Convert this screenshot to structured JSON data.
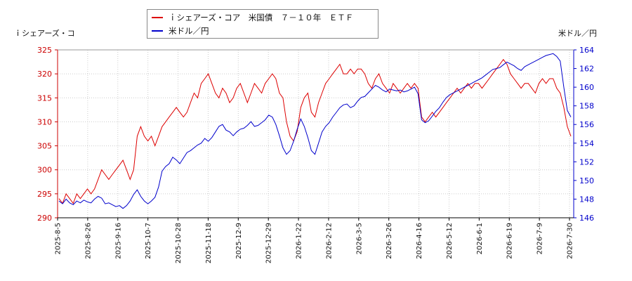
{
  "chart_data": {
    "type": "line",
    "left_axis_title": "ｉシェアーズ・コ",
    "right_axis_title": "米ドル／円",
    "series": [
      {
        "name": "ｉシェアーズ・コア　米国債　７－１０年　ＥＴＦ",
        "color": "#dd0000",
        "axis": "left",
        "values": [
          294,
          293,
          295,
          294,
          293,
          295,
          294,
          295,
          296,
          295,
          296,
          298,
          300,
          299,
          298,
          299,
          300,
          301,
          302,
          300,
          298,
          300,
          307,
          309,
          307,
          306,
          307,
          305,
          307,
          309,
          310,
          311,
          312,
          313,
          312,
          311,
          312,
          314,
          316,
          315,
          318,
          319,
          320,
          318,
          316,
          315,
          317,
          316,
          314,
          315,
          317,
          318,
          316,
          314,
          316,
          318,
          317,
          316,
          318,
          319,
          320,
          319,
          316,
          315,
          310,
          307,
          306,
          308,
          313,
          315,
          316,
          312,
          311,
          314,
          316,
          318,
          319,
          320,
          321,
          322,
          320,
          320,
          321,
          320,
          321,
          321,
          320,
          318,
          317,
          319,
          320,
          318,
          317,
          316,
          318,
          317,
          316,
          317,
          318,
          317,
          318,
          317,
          311,
          310,
          311,
          312,
          311,
          312,
          313,
          314,
          315,
          316,
          317,
          316,
          317,
          318,
          317,
          318,
          318,
          317,
          318,
          319,
          320,
          321,
          322,
          323,
          322,
          320,
          319,
          318,
          317,
          318,
          318,
          317,
          316,
          318,
          319,
          318,
          319,
          319,
          317,
          316,
          313,
          309,
          307
        ]
      },
      {
        "name": "米ドル／円",
        "color": "#0000cc",
        "axis": "right",
        "values": [
          147.8,
          147.5,
          148.0,
          147.6,
          147.4,
          147.8,
          147.6,
          147.9,
          147.7,
          147.6,
          148.0,
          148.3,
          148.1,
          147.5,
          147.6,
          147.4,
          147.2,
          147.3,
          147.0,
          147.3,
          147.8,
          148.5,
          149.0,
          148.3,
          147.8,
          147.5,
          147.8,
          148.2,
          149.3,
          151.0,
          151.5,
          151.8,
          152.5,
          152.2,
          151.8,
          152.4,
          153.0,
          153.2,
          153.5,
          153.8,
          154.0,
          154.5,
          154.2,
          154.6,
          155.2,
          155.8,
          156.0,
          155.4,
          155.2,
          154.8,
          155.2,
          155.5,
          155.6,
          155.9,
          156.3,
          155.8,
          155.9,
          156.2,
          156.5,
          157.0,
          156.8,
          156.0,
          154.8,
          153.5,
          152.8,
          153.2,
          154.2,
          155.5,
          156.6,
          155.8,
          154.6,
          153.2,
          152.8,
          154.0,
          155.2,
          155.8,
          156.2,
          156.8,
          157.3,
          157.8,
          158.1,
          158.2,
          157.8,
          158.0,
          158.5,
          158.9,
          159.0,
          159.4,
          159.8,
          160.2,
          160.0,
          159.7,
          159.5,
          159.8,
          159.7,
          159.6,
          159.7,
          159.5,
          159.6,
          159.8,
          160.0,
          159.3,
          156.5,
          156.2,
          156.4,
          156.9,
          157.4,
          157.8,
          158.4,
          158.9,
          159.2,
          159.4,
          159.6,
          159.8,
          160.0,
          160.2,
          160.4,
          160.6,
          160.8,
          161.0,
          161.3,
          161.6,
          161.9,
          162.0,
          162.1,
          162.4,
          162.7,
          162.5,
          162.3,
          162.0,
          161.8,
          162.2,
          162.4,
          162.6,
          162.8,
          163.0,
          163.2,
          163.4,
          163.5,
          163.6,
          163.3,
          162.8,
          160.0,
          157.5,
          156.8
        ]
      }
    ],
    "x_ticks": [
      "2025-8-5",
      "2025-8-26",
      "2025-9-16",
      "2025-10-7",
      "2025-10-28",
      "2025-11-18",
      "2025-12-9",
      "2025-12-29",
      "2026-1-22",
      "2026-2-12",
      "2026-3-5",
      "2026-3-26",
      "2026-4-16",
      "2026-5-12",
      "2026-6-1",
      "2026-6-19",
      "2026-7-9",
      "2026-7-30"
    ],
    "y_left": {
      "min": 290,
      "max": 325,
      "ticks": [
        290,
        295,
        300,
        305,
        310,
        315,
        320,
        325
      ],
      "color": "#cc0000"
    },
    "y_right": {
      "min": 146,
      "max": 164,
      "ticks": [
        146,
        148,
        150,
        152,
        154,
        156,
        158,
        160,
        162,
        164
      ],
      "color": "#0000cc"
    },
    "grid": true,
    "legend_position": "top-left"
  }
}
